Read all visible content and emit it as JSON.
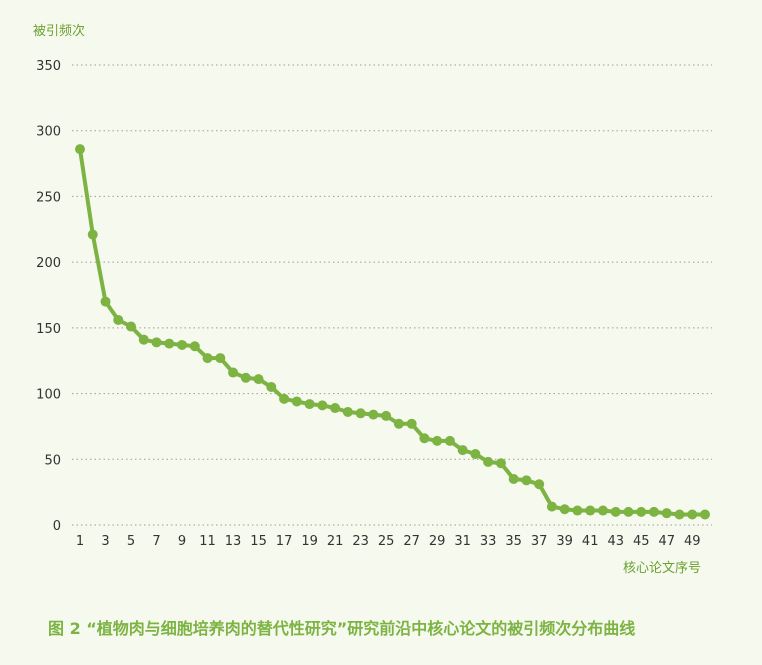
{
  "chart_data": {
    "type": "line",
    "ylabel": "被引频次",
    "xlabel": "核心论文序号",
    "caption": "图 2 “植物肉与细胞培养肉的替代性研究”研究前沿中核心论文的被引频次分布曲线",
    "ylim": [
      0,
      350
    ],
    "yticks": [
      0,
      50,
      100,
      150,
      200,
      250,
      300,
      350
    ],
    "xlim": [
      1,
      50
    ],
    "xticks": [
      1,
      3,
      5,
      7,
      9,
      11,
      13,
      15,
      17,
      19,
      21,
      23,
      25,
      27,
      29,
      31,
      33,
      35,
      37,
      39,
      41,
      43,
      45,
      47,
      49
    ],
    "grid": true,
    "color": "#7cb342",
    "x": [
      1,
      2,
      3,
      4,
      5,
      6,
      7,
      8,
      9,
      10,
      11,
      12,
      13,
      14,
      15,
      16,
      17,
      18,
      19,
      20,
      21,
      22,
      23,
      24,
      25,
      26,
      27,
      28,
      29,
      30,
      31,
      32,
      33,
      34,
      35,
      36,
      37,
      38,
      39,
      40,
      41,
      42,
      43,
      44,
      45,
      46,
      47,
      48,
      49,
      50
    ],
    "values": [
      286,
      221,
      170,
      156,
      151,
      141,
      139,
      138,
      137,
      136,
      127,
      127,
      116,
      112,
      111,
      105,
      96,
      94,
      92,
      91,
      89,
      86,
      85,
      84,
      83,
      77,
      77,
      66,
      64,
      64,
      57,
      54,
      48,
      47,
      35,
      34,
      31,
      14,
      12,
      11,
      11,
      11,
      10,
      10,
      10,
      10,
      9,
      8,
      8,
      8
    ]
  }
}
